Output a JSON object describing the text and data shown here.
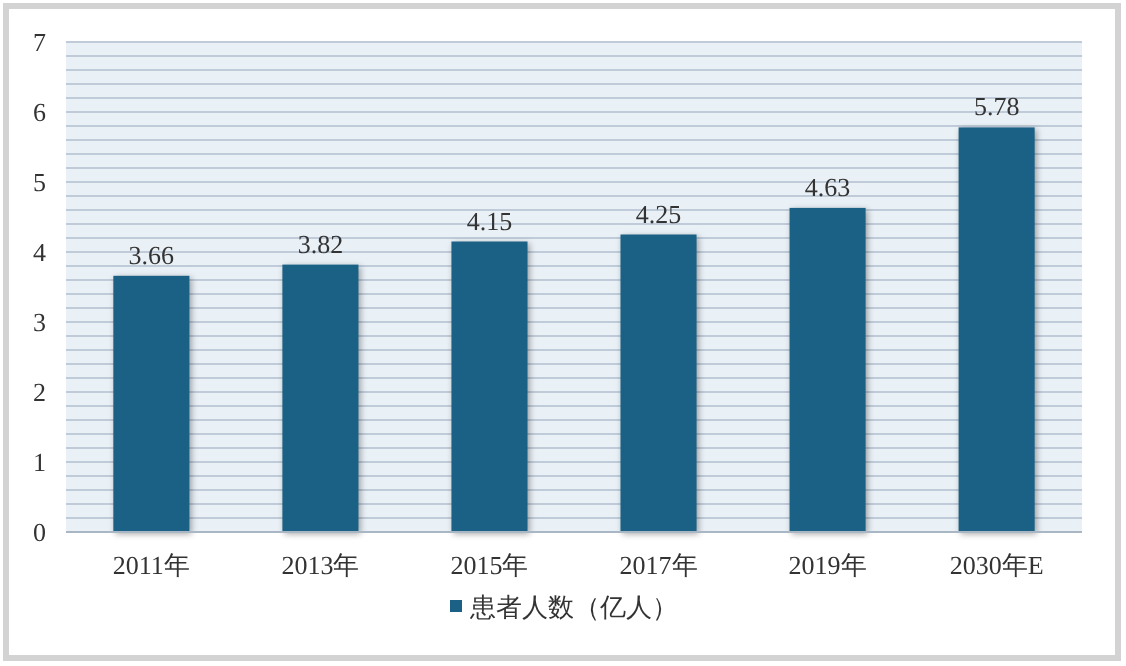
{
  "chart_data": {
    "type": "bar",
    "categories": [
      "2011年",
      "2013年",
      "2015年",
      "2017年",
      "2019年",
      "2030年E"
    ],
    "series": [
      {
        "name": "患者人数（亿人）",
        "color": "#1b6185",
        "values": [
          3.66,
          3.82,
          4.15,
          4.25,
          4.63,
          5.78
        ]
      }
    ],
    "ylim": [
      0,
      7
    ],
    "yticks": [
      0,
      {
        "value": 0.2,
        "label": null
      },
      {
        "value": 0.4,
        "label": null
      },
      {
        "value": 0.6,
        "label": null
      },
      {
        "value": 0.8,
        "label": null
      },
      1,
      {
        "value": 1.2,
        "label": null
      },
      {
        "value": 1.4,
        "label": null
      },
      {
        "value": 1.6,
        "label": null
      },
      {
        "value": 1.8,
        "label": null
      },
      2,
      {
        "value": 2.2,
        "label": null
      },
      {
        "value": 2.4,
        "label": null
      },
      {
        "value": 2.6,
        "label": null
      },
      {
        "value": 2.8,
        "label": null
      },
      3,
      {
        "value": 3.2,
        "label": null
      },
      {
        "value": 3.4,
        "label": null
      },
      {
        "value": 3.6,
        "label": null
      },
      {
        "value": 3.8,
        "label": null
      },
      4,
      {
        "value": 4.2,
        "label": null
      },
      {
        "value": 4.4,
        "label": null
      },
      {
        "value": 4.6,
        "label": null
      },
      {
        "value": 4.8,
        "label": null
      },
      5,
      {
        "value": 5.2,
        "label": null
      },
      {
        "value": 5.4,
        "label": null
      },
      {
        "value": 5.6,
        "label": null
      },
      {
        "value": 5.8,
        "label": null
      },
      6,
      {
        "value": 6.2,
        "label": null
      },
      {
        "value": 6.4,
        "label": null
      },
      {
        "value": 6.6,
        "label": null
      },
      {
        "value": 6.8,
        "label": null
      },
      7
    ],
    "grid": "y",
    "data_labels": true,
    "legend": "bottom"
  }
}
